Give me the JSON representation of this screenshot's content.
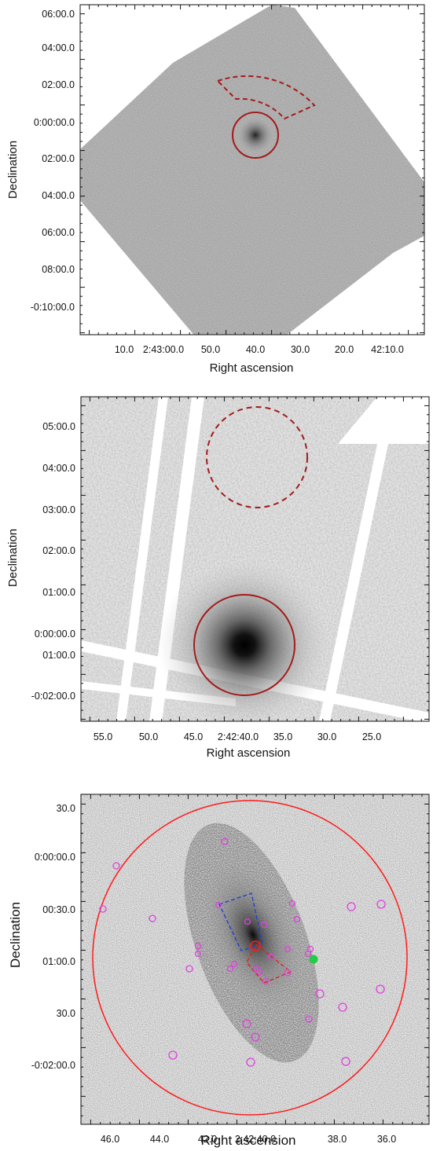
{
  "panels": [
    {
      "id": "top",
      "xlabel": "Right ascension",
      "ylabel": "Declination",
      "x_ticks": [
        "10.0",
        "2:43:00.0",
        "50.0",
        "40.0",
        "30.0",
        "20.0",
        "42:10.0"
      ],
      "y_ticks": [
        "06:00.0",
        "04:00.0",
        "02:00.0",
        "0:00:00.0",
        "02:00.0",
        "04:00.0",
        "06:00.0",
        "08:00.0",
        "-0:10:00.0"
      ],
      "colors": {
        "source_region": "#a31b1b",
        "background_region": "#a31b1b",
        "image": "#9a9a9a"
      }
    },
    {
      "id": "middle",
      "xlabel": "Right ascension",
      "ylabel": "Declination",
      "x_ticks": [
        "55.0",
        "50.0",
        "45.0",
        "2:42:40.0",
        "35.0",
        "30.0",
        "25.0"
      ],
      "y_ticks": [
        "05:00.0",
        "04:00.0",
        "03:00.0",
        "02:00.0",
        "01:00.0",
        "0:00:00.0",
        "01:00.0",
        "-0:02:00.0"
      ],
      "colors": {
        "source_region": "#a31b1b",
        "background_region": "#a31b1b"
      }
    },
    {
      "id": "bottom",
      "xlabel": "Right ascension",
      "ylabel": "Declination",
      "x_ticks": [
        "46.0",
        "44.0",
        "42.0",
        "2:42:40.0",
        "38.0",
        "36.0"
      ],
      "y_ticks": [
        "30.0",
        "0:00:00.0",
        "00:30.0",
        "01:00.0",
        "30.0",
        "-0:02:00.0"
      ],
      "colors": {
        "extraction_circle": "#ff1a1a",
        "point_sources": "#e040e0",
        "blue_box": "#1f3fd6",
        "red_box": "#e02020",
        "green_source": "#22cc44"
      }
    }
  ]
}
